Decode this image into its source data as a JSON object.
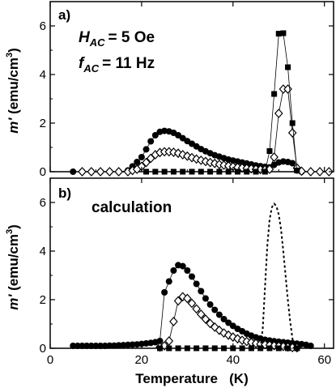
{
  "chart_data": [
    {
      "panel": "a)",
      "type": "scatter",
      "xlim": [
        0,
        62
      ],
      "ylim": [
        0,
        7
      ],
      "xticks": [
        0,
        20,
        40,
        60
      ],
      "yticks": [
        0,
        2,
        4,
        6
      ],
      "ylabel": "m' (emu/cm3)",
      "annotation": {
        "h_symbol": "H",
        "h_sub": "AC",
        "h_value": "= 5 Oe",
        "f_symbol": "f",
        "f_sub": "AC",
        "f_value": "= 11 Hz"
      },
      "series": [
        {
          "marker": "filled-circle",
          "line": true,
          "points": [
            [
              5,
              0
            ],
            [
              7,
              0
            ],
            [
              9,
              0
            ],
            [
              11,
              0
            ],
            [
              13,
              0
            ],
            [
              15,
              0
            ],
            [
              17,
              0.05
            ],
            [
              18,
              0.22
            ],
            [
              19,
              0.4
            ],
            [
              20,
              0.6
            ],
            [
              21,
              0.92
            ],
            [
              22,
              1.25
            ],
            [
              23,
              1.5
            ],
            [
              24,
              1.64
            ],
            [
              25,
              1.68
            ],
            [
              26,
              1.66
            ],
            [
              27,
              1.6
            ],
            [
              28,
              1.5
            ],
            [
              29,
              1.38
            ],
            [
              30,
              1.26
            ],
            [
              31,
              1.15
            ],
            [
              32,
              1.04
            ],
            [
              33,
              0.93
            ],
            [
              34,
              0.84
            ],
            [
              35,
              0.76
            ],
            [
              36,
              0.68
            ],
            [
              37,
              0.62
            ],
            [
              38,
              0.56
            ],
            [
              39,
              0.5
            ],
            [
              40,
              0.46
            ],
            [
              41,
              0.42
            ],
            [
              42,
              0.38
            ],
            [
              43,
              0.34
            ],
            [
              44,
              0.3
            ],
            [
              45,
              0.26
            ],
            [
              46,
              0.23
            ],
            [
              47,
              0.2
            ],
            [
              48,
              0.18
            ],
            [
              49,
              0.28
            ],
            [
              50,
              0.38
            ],
            [
              51,
              0.42
            ],
            [
              52,
              0.4
            ],
            [
              53,
              0.35
            ],
            [
              54,
              0.05
            ],
            [
              55,
              0
            ]
          ]
        },
        {
          "marker": "open-diamond",
          "line": true,
          "points": [
            [
              7,
              0
            ],
            [
              9,
              0
            ],
            [
              11,
              0
            ],
            [
              13,
              0
            ],
            [
              15,
              0
            ],
            [
              17,
              0
            ],
            [
              18,
              0.05
            ],
            [
              19,
              0.1
            ],
            [
              20,
              0.22
            ],
            [
              21,
              0.38
            ],
            [
              22,
              0.55
            ],
            [
              23,
              0.7
            ],
            [
              24,
              0.79
            ],
            [
              25,
              0.82
            ],
            [
              26,
              0.82
            ],
            [
              27,
              0.8
            ],
            [
              28,
              0.76
            ],
            [
              29,
              0.7
            ],
            [
              30,
              0.64
            ],
            [
              31,
              0.58
            ],
            [
              32,
              0.52
            ],
            [
              33,
              0.47
            ],
            [
              34,
              0.42
            ],
            [
              35,
              0.38
            ],
            [
              36,
              0.34
            ],
            [
              37,
              0.3
            ],
            [
              38,
              0.27
            ],
            [
              39,
              0.24
            ],
            [
              40,
              0.21
            ],
            [
              41,
              0.18
            ],
            [
              42,
              0.16
            ],
            [
              43,
              0.14
            ],
            [
              44,
              0.12
            ],
            [
              45,
              0.1
            ],
            [
              46,
              0.09
            ],
            [
              47,
              0.08
            ],
            [
              48,
              0.1
            ],
            [
              49,
              0.6
            ],
            [
              50,
              2.4
            ],
            [
              51,
              3.4
            ],
            [
              52,
              3.4
            ],
            [
              53,
              1.6
            ],
            [
              54,
              0.15
            ],
            [
              55,
              0.02
            ],
            [
              57,
              0
            ],
            [
              59,
              0
            ],
            [
              61,
              0
            ]
          ]
        },
        {
          "marker": "filled-square",
          "line": true,
          "points": [
            [
              21,
              0
            ],
            [
              23,
              0
            ],
            [
              25,
              0
            ],
            [
              27,
              0
            ],
            [
              29,
              0
            ],
            [
              31,
              0
            ],
            [
              33,
              0
            ],
            [
              35,
              0
            ],
            [
              37,
              0
            ],
            [
              39,
              0
            ],
            [
              41,
              0
            ],
            [
              43,
              0
            ],
            [
              45,
              0
            ],
            [
              47,
              0
            ],
            [
              48,
              0.85
            ],
            [
              49,
              3.2
            ],
            [
              50,
              5.68
            ],
            [
              51,
              5.7
            ],
            [
              52,
              4.3
            ],
            [
              53,
              2.0
            ],
            [
              54,
              0.05
            ]
          ]
        }
      ]
    },
    {
      "panel": "b)",
      "type": "scatter",
      "xlim": [
        0,
        62
      ],
      "ylim": [
        0,
        7
      ],
      "xticks": [
        0,
        20,
        40,
        60
      ],
      "yticks": [
        0,
        2,
        4,
        6
      ],
      "xlabel": "Temperature   (K)",
      "ylabel": "m' (emu/cm3)",
      "annotation_text": "calculation",
      "series": [
        {
          "marker": "filled-circle",
          "line": true,
          "points": [
            [
              5,
              0.1
            ],
            [
              6,
              0.1
            ],
            [
              7,
              0.1
            ],
            [
              8,
              0.1
            ],
            [
              9,
              0.1
            ],
            [
              10,
              0.1
            ],
            [
              11,
              0.1
            ],
            [
              12,
              0.1
            ],
            [
              13,
              0.11
            ],
            [
              14,
              0.11
            ],
            [
              15,
              0.12
            ],
            [
              16,
              0.13
            ],
            [
              17,
              0.14
            ],
            [
              18,
              0.15
            ],
            [
              19,
              0.16
            ],
            [
              20,
              0.18
            ],
            [
              21,
              0.2
            ],
            [
              22,
              0.22
            ],
            [
              23,
              0.25
            ],
            [
              24,
              0.3
            ],
            [
              25,
              2.3
            ],
            [
              26,
              2.75
            ],
            [
              27,
              3.2
            ],
            [
              28,
              3.42
            ],
            [
              29,
              3.38
            ],
            [
              30,
              3.2
            ],
            [
              31,
              2.95
            ],
            [
              32,
              2.65
            ],
            [
              33,
              2.35
            ],
            [
              34,
              2.05
            ],
            [
              35,
              1.8
            ],
            [
              36,
              1.58
            ],
            [
              37,
              1.38
            ],
            [
              38,
              1.2
            ],
            [
              39,
              1.05
            ],
            [
              40,
              0.92
            ],
            [
              41,
              0.8
            ],
            [
              42,
              0.7
            ],
            [
              43,
              0.6
            ],
            [
              44,
              0.52
            ],
            [
              45,
              0.45
            ],
            [
              46,
              0.4
            ],
            [
              47,
              0.35
            ],
            [
              48,
              0.32
            ],
            [
              49,
              0.29
            ],
            [
              50,
              0.27
            ],
            [
              51,
              0.25
            ],
            [
              52,
              0.23
            ],
            [
              53,
              0.21
            ],
            [
              54,
              0.19
            ],
            [
              55,
              0.17
            ],
            [
              56,
              0.14
            ],
            [
              57,
              0.1
            ]
          ]
        },
        {
          "marker": "open-diamond",
          "line": true,
          "points": [
            [
              24,
              0.05
            ],
            [
              25,
              0.1
            ],
            [
              26,
              0.3
            ],
            [
              27,
              1.1
            ],
            [
              28,
              1.95
            ],
            [
              29,
              2.12
            ],
            [
              30,
              2.05
            ],
            [
              31,
              1.85
            ],
            [
              32,
              1.62
            ],
            [
              33,
              1.4
            ],
            [
              34,
              1.2
            ],
            [
              35,
              1.02
            ],
            [
              36,
              0.87
            ],
            [
              37,
              0.74
            ],
            [
              38,
              0.63
            ],
            [
              39,
              0.54
            ],
            [
              40,
              0.46
            ],
            [
              41,
              0.39
            ],
            [
              42,
              0.33
            ],
            [
              43,
              0.28
            ],
            [
              44,
              0.24
            ],
            [
              45,
              0.2
            ],
            [
              46,
              0.17
            ],
            [
              47,
              0.15
            ],
            [
              48,
              0.13
            ],
            [
              49,
              0.11
            ],
            [
              50,
              0.09
            ],
            [
              51,
              0.07
            ],
            [
              52,
              0.05
            ],
            [
              53,
              0.03
            ],
            [
              54,
              0.02
            ]
          ]
        },
        {
          "marker": "filled-square",
          "line": true,
          "points": [
            [
              24,
              0
            ],
            [
              26,
              0
            ],
            [
              28,
              0
            ],
            [
              30,
              0
            ],
            [
              32,
              0
            ],
            [
              34,
              0
            ],
            [
              36,
              0
            ],
            [
              38,
              0
            ],
            [
              40,
              0
            ],
            [
              42,
              0
            ],
            [
              44,
              0
            ],
            [
              46,
              0
            ],
            [
              48,
              0
            ],
            [
              50,
              0
            ],
            [
              52,
              0
            ],
            [
              54,
              0
            ]
          ]
        },
        {
          "marker": "none",
          "line": "dashed",
          "points": [
            [
              46,
              0
            ],
            [
              46.5,
              0.8
            ],
            [
              47,
              2.5
            ],
            [
              47.5,
              4.2
            ],
            [
              48,
              5.3
            ],
            [
              48.5,
              5.8
            ],
            [
              49,
              5.95
            ],
            [
              49.5,
              5.85
            ],
            [
              50,
              5.5
            ],
            [
              50.5,
              4.9
            ],
            [
              51,
              4.0
            ],
            [
              51.5,
              3.0
            ],
            [
              52,
              2.0
            ],
            [
              52.5,
              1.1
            ],
            [
              53,
              0.4
            ],
            [
              53.5,
              0
            ]
          ]
        }
      ]
    }
  ]
}
